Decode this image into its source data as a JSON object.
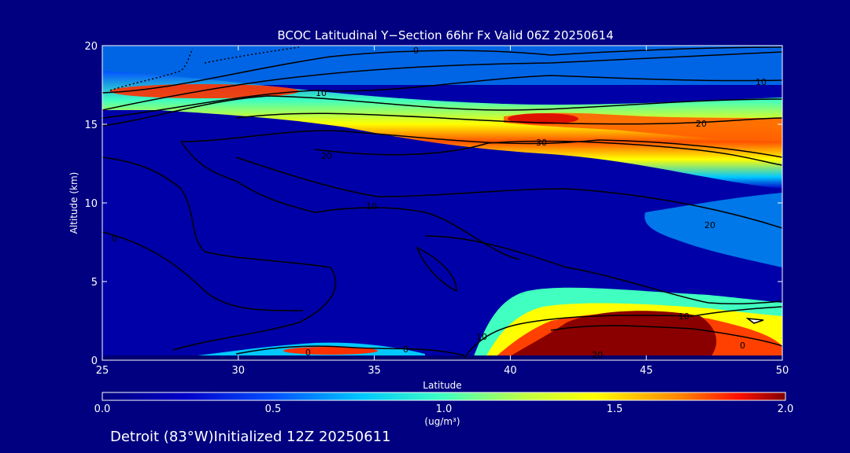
{
  "chart_data": {
    "type": "heatmap",
    "title": "BCOC Latitudinal Y−Section 66hr  Fx Valid 06Z 20250614",
    "xlabel": "Latitude",
    "ylabel": "Altitude (km)",
    "xlim": [
      25,
      50
    ],
    "ylim": [
      0,
      20
    ],
    "x_ticks": [
      "25",
      "30",
      "35",
      "40",
      "45",
      "50"
    ],
    "y_ticks": [
      "0",
      "5",
      "10",
      "15",
      "20"
    ],
    "colorbar": {
      "min": 0.0,
      "max": 2.0,
      "ticks": [
        "0.0",
        "0.5",
        "1.0",
        "1.5",
        "2.0"
      ],
      "unit_label": "(ug/m³)"
    },
    "features": [
      {
        "name": "upper plume west",
        "lat_range": [
          25,
          33
        ],
        "alt_km": 17.0,
        "peak_value": 1.7
      },
      {
        "name": "upper plume east",
        "lat_range": [
          39,
          50
        ],
        "alt_km": 15.2,
        "peak_value": 1.8
      },
      {
        "name": "surface plume south",
        "lat_range": [
          30,
          36
        ],
        "alt_km": 0.5,
        "peak_value": 1.7
      },
      {
        "name": "surface plume north",
        "lat_range": [
          39,
          50
        ],
        "alt_km": 1.5,
        "peak_value": 2.0
      }
    ],
    "contour_labels": [
      "0",
      "10",
      "20",
      "30",
      "20",
      "10",
      "20",
      "10",
      "0",
      "0",
      "0",
      "10",
      "20",
      "0",
      "10"
    ]
  },
  "footer": {
    "text": "Detroit (83°W)Initialized 12Z 20250611"
  }
}
